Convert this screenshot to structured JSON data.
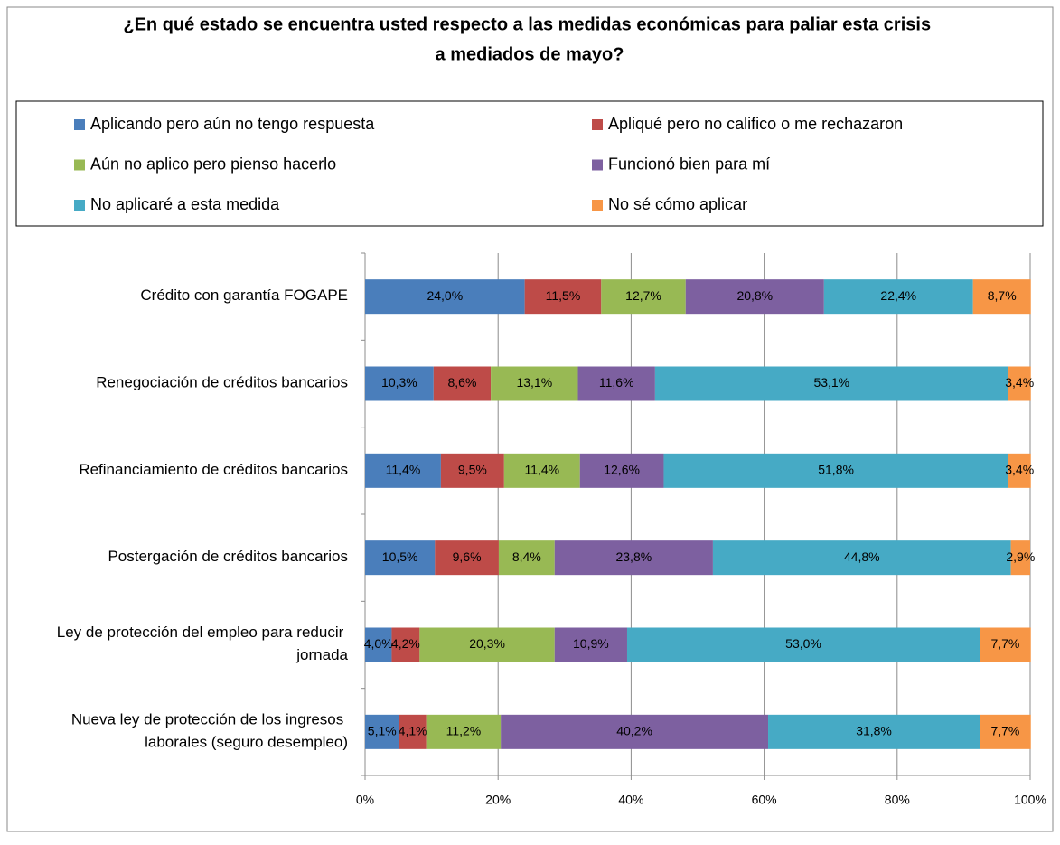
{
  "chart_data": {
    "type": "stacked-bar-horizontal",
    "title": "¿En qué estado se encuentra usted respecto a las medidas económicas para paliar esta crisis a mediados de mayo?",
    "categories": [
      "Crédito con garantía FOGAPE",
      "Renegociación de créditos bancarios",
      "Refinanciamiento de créditos bancarios",
      "Postergación de créditos bancarios",
      "Ley de protección del empleo para reducir jornada",
      "Nueva ley de protección de los ingresos laborales (seguro desempleo)"
    ],
    "series": [
      {
        "name": "Aplicando pero aún no tengo respuesta",
        "color": "#4a7ebb",
        "values": [
          24.0,
          10.3,
          11.4,
          10.5,
          4.0,
          5.1
        ],
        "value_labels": [
          "24,0%",
          "10,3%",
          "11,4%",
          "10,5%",
          "4,0%",
          "5,1%"
        ]
      },
      {
        "name": "Apliqué pero no califico o me rechazaron",
        "color": "#be4b48",
        "values": [
          11.5,
          8.6,
          9.5,
          9.6,
          4.2,
          4.1
        ],
        "value_labels": [
          "11,5%",
          "8,6%",
          "9,5%",
          "9,6%",
          "4,2%",
          "4,1%"
        ]
      },
      {
        "name": "Aún no aplico pero pienso hacerlo",
        "color": "#98b954",
        "values": [
          12.7,
          13.1,
          11.4,
          8.4,
          20.3,
          11.2
        ],
        "value_labels": [
          "12,7%",
          "13,1%",
          "11,4%",
          "8,4%",
          "20,3%",
          "11,2%"
        ]
      },
      {
        "name": "Funcionó bien para mí",
        "color": "#7d60a0",
        "values": [
          20.8,
          11.6,
          12.6,
          23.8,
          10.9,
          40.2
        ],
        "value_labels": [
          "20,8%",
          "11,6%",
          "12,6%",
          "23,8%",
          "10,9%",
          "40,2%"
        ]
      },
      {
        "name": "No aplicaré a esta medida",
        "color": "#46aac5",
        "values": [
          22.4,
          53.1,
          51.8,
          44.8,
          53.0,
          31.8
        ],
        "value_labels": [
          "22,4%",
          "53,1%",
          "51,8%",
          "44,8%",
          "53,0%",
          "31,8%"
        ]
      },
      {
        "name": "No sé cómo aplicar",
        "color": "#f79646",
        "values": [
          8.7,
          3.4,
          3.4,
          2.9,
          7.7,
          7.7
        ],
        "value_labels": [
          "8,7%",
          "3,4%",
          "3,4%",
          "2,9%",
          "7,7%",
          "7,7%"
        ]
      }
    ],
    "xlim": [
      0,
      100
    ],
    "xticks": [
      {
        "value": 0,
        "label": "0%"
      },
      {
        "value": 20,
        "label": "20%"
      },
      {
        "value": 40,
        "label": "40%"
      },
      {
        "value": 60,
        "label": "60%"
      },
      {
        "value": 80,
        "label": "80%"
      },
      {
        "value": 100,
        "label": "100%"
      }
    ],
    "grid": true,
    "legend": "top"
  }
}
